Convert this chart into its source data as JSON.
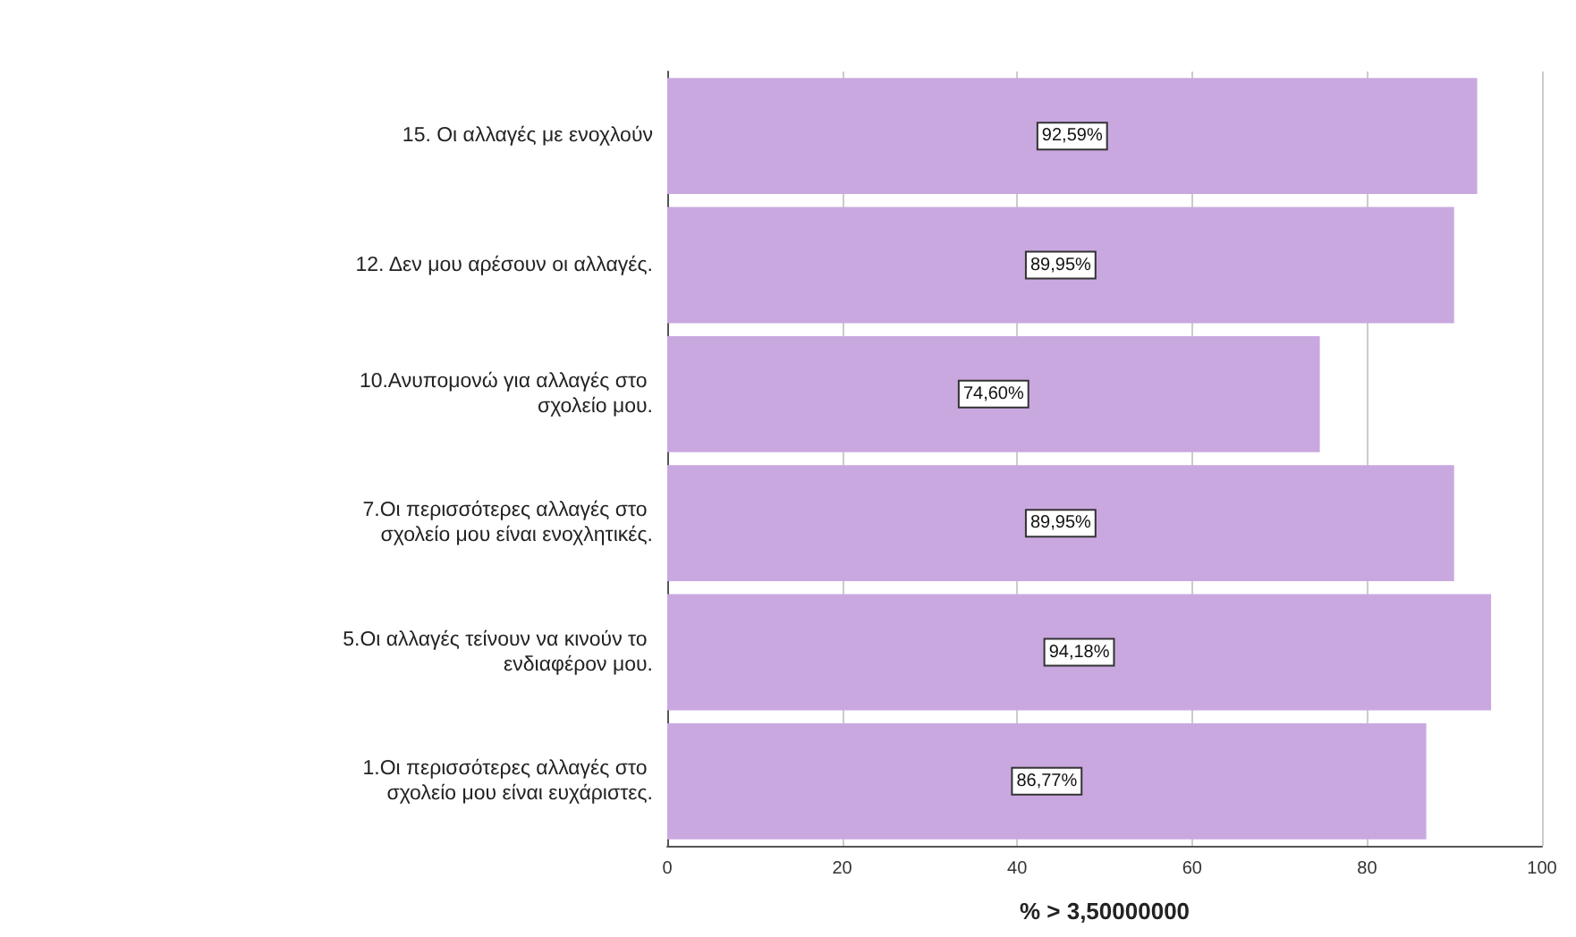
{
  "chart_data": {
    "type": "bar",
    "orientation": "horizontal",
    "xlabel": "% > 3,50000000",
    "categories": [
      "15. Οι αλλαγές με ενοχλούν",
      "12. Δεν μου αρέσουν οι αλλαγές.",
      "10.Ανυπομονώ για αλλαγές στο σχολείο μου.",
      "7.Οι περισσότερες αλλαγές στο σχολείο μου είναι ενοχλητικές.",
      "5.Οι αλλαγές τείνουν να κινούν το ενδιαφέρον μου.",
      "1.Οι περισσότερες αλλαγές στο σχολείο μου είναι ευχάριστες."
    ],
    "values": [
      92.59,
      89.95,
      74.6,
      89.95,
      94.18,
      86.77
    ],
    "value_labels": [
      "92,59%",
      "89,95%",
      "74,60%",
      "89,95%",
      "94,18%",
      "86,77%"
    ],
    "color": "#c9a8e0",
    "xlim": [
      0,
      100
    ],
    "xticks": [
      0,
      20,
      40,
      60,
      80,
      100
    ],
    "grid": "x"
  }
}
